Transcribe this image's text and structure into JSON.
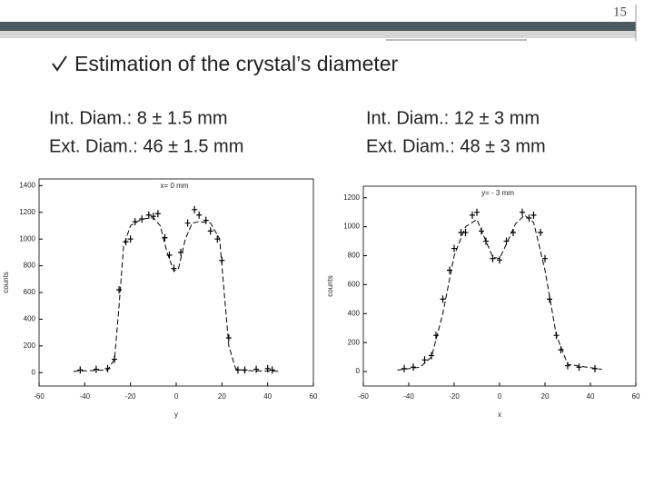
{
  "page_number": "15",
  "heading": "Estimation of the crystal’s diameter",
  "left_text": [
    "Int. Diam.: 8 ± 1.5 mm",
    "Ext. Diam.: 46 ± 1.5 mm"
  ],
  "right_text": [
    "Int. Diam.: 12 ± 3 mm",
    "Ext. Diam.: 48 ± 3 mm"
  ],
  "chart_data": [
    {
      "type": "scatter",
      "annotation": "x= 0 mm",
      "xlabel": "y",
      "ylabel": "counts",
      "xlim": [
        -60,
        60
      ],
      "xticks": [
        -60,
        -40,
        -20,
        0,
        20,
        40,
        60
      ],
      "ylim": [
        -100,
        1450
      ],
      "yticks": [
        0,
        200,
        400,
        600,
        800,
        1000,
        1200,
        1400
      ],
      "color": "#000000",
      "x": [
        -42,
        -35,
        -30,
        -27,
        -25,
        -22,
        -20,
        -18,
        -15,
        -12,
        -10,
        -8,
        -5,
        -3,
        -1,
        2,
        5,
        8,
        10,
        13,
        15,
        18,
        20,
        23,
        27,
        30,
        35,
        40,
        42
      ],
      "values": [
        20,
        25,
        30,
        100,
        620,
        980,
        1000,
        1130,
        1150,
        1180,
        1170,
        1190,
        1010,
        880,
        780,
        900,
        1120,
        1220,
        1180,
        1140,
        1060,
        1000,
        840,
        260,
        20,
        20,
        25,
        30,
        20
      ],
      "fit_x": [
        -45,
        -30,
        -27,
        -25,
        -23,
        -20,
        -15,
        -10,
        -7,
        -4,
        -1,
        1,
        4,
        7,
        10,
        15,
        19,
        21,
        23,
        26,
        30,
        45
      ],
      "fit_y": [
        10,
        20,
        100,
        500,
        950,
        1100,
        1150,
        1160,
        1100,
        900,
        760,
        780,
        1000,
        1120,
        1130,
        1120,
        1000,
        600,
        200,
        30,
        15,
        10
      ]
    },
    {
      "type": "scatter",
      "annotation": "y= - 3 mm",
      "xlabel": "x",
      "ylabel": "counts",
      "xlim": [
        -60,
        60
      ],
      "xticks": [
        -60,
        -40,
        -20,
        0,
        20,
        40,
        60
      ],
      "ylim": [
        -100,
        1280
      ],
      "yticks": [
        0,
        200,
        400,
        600,
        800,
        1000,
        1200
      ],
      "color": "#000000",
      "x": [
        -42,
        -38,
        -33,
        -30,
        -28,
        -25,
        -22,
        -20,
        -17,
        -15,
        -12,
        -10,
        -8,
        -6,
        -3,
        0,
        3,
        6,
        10,
        13,
        15,
        18,
        20,
        22,
        25,
        27,
        30,
        35,
        42
      ],
      "values": [
        20,
        30,
        80,
        110,
        250,
        500,
        700,
        850,
        960,
        960,
        1080,
        1100,
        970,
        900,
        780,
        770,
        900,
        960,
        1100,
        1060,
        1080,
        960,
        780,
        500,
        250,
        150,
        40,
        30,
        20
      ],
      "fit_x": [
        -45,
        -35,
        -30,
        -25,
        -20,
        -15,
        -10,
        -6,
        -3,
        0,
        3,
        7,
        11,
        15,
        20,
        25,
        30,
        45
      ],
      "fit_y": [
        10,
        30,
        100,
        400,
        800,
        1000,
        1050,
        900,
        790,
        780,
        880,
        1020,
        1080,
        1030,
        700,
        250,
        50,
        15
      ]
    }
  ]
}
